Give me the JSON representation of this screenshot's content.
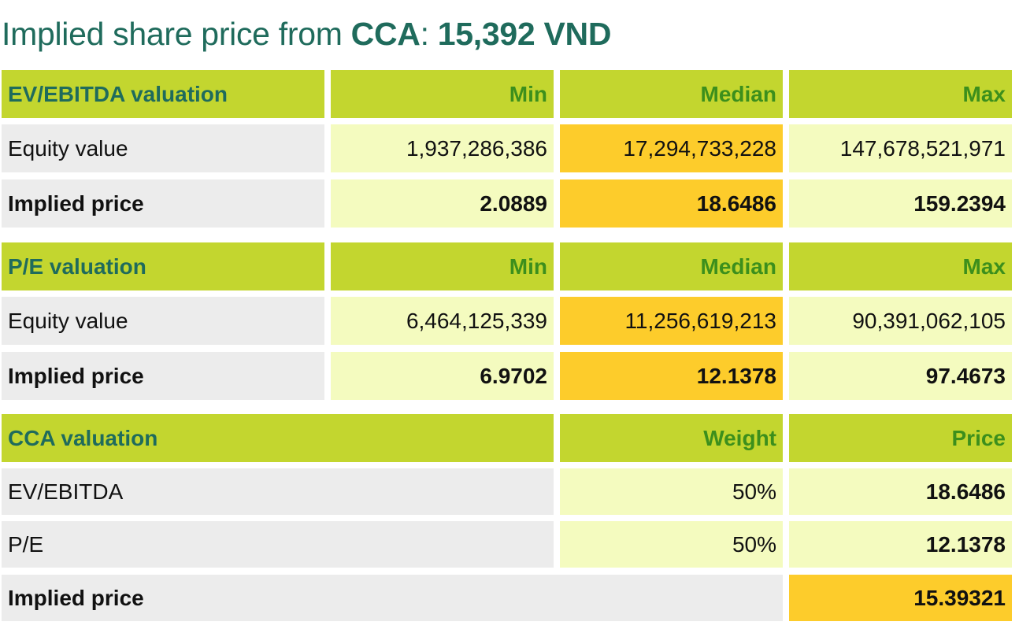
{
  "title": {
    "prefix": "Implied share price from ",
    "strong1": "CCA",
    "sep": ": ",
    "strong2": "15,392 VND"
  },
  "ev_ebitda": {
    "header": [
      "EV/EBITDA valuation",
      "Min",
      "Median",
      "Max"
    ],
    "rows": [
      {
        "label": "Equity value",
        "values": [
          "1,937,286,386",
          "17,294,733,228",
          "147,678,521,971"
        ]
      },
      {
        "label": "Implied price",
        "values": [
          "2.0889",
          "18.6486",
          "159.2394"
        ]
      }
    ]
  },
  "pe": {
    "header": [
      "P/E valuation",
      "Min",
      "Median",
      "Max"
    ],
    "rows": [
      {
        "label": "Equity value",
        "values": [
          "6,464,125,339",
          "11,256,619,213",
          "90,391,062,105"
        ]
      },
      {
        "label": "Implied price",
        "values": [
          "6.9702",
          "12.1378",
          "97.4673"
        ]
      }
    ]
  },
  "cca": {
    "header": [
      "CCA valuation",
      "Weight",
      "Price"
    ],
    "rows": [
      {
        "label": "EV/EBITDA",
        "weight": "50%",
        "price": "18.6486"
      },
      {
        "label": "P/E",
        "weight": "50%",
        "price": "12.1378"
      }
    ],
    "total": {
      "label": "Implied price",
      "price": "15.39321"
    }
  }
}
